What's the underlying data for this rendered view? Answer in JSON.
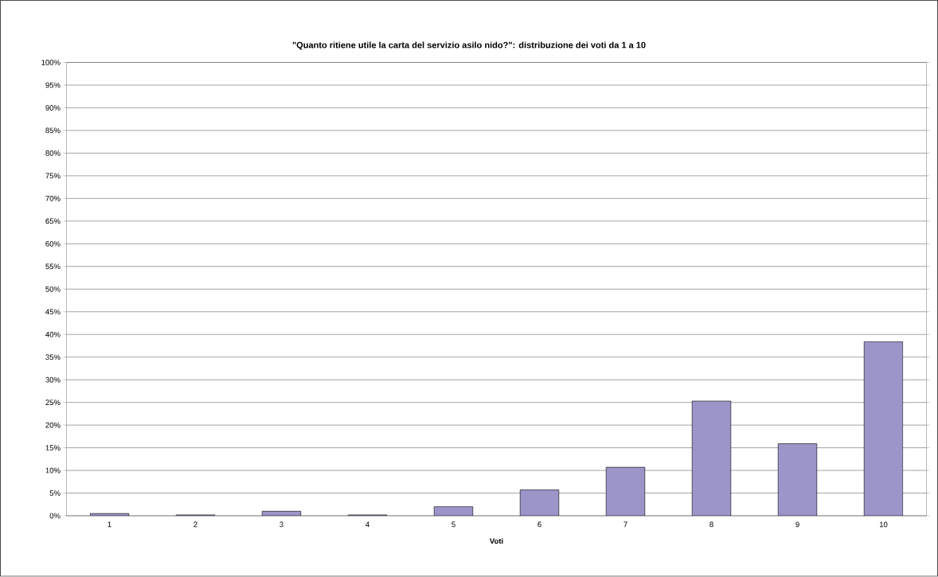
{
  "chart_data": {
    "type": "bar",
    "title": "\"Quanto ritiene utile la carta del servizio asilo nido?\": distribuzione dei voti da 1 a 10",
    "xlabel": "Voti",
    "categories": [
      "1",
      "2",
      "3",
      "4",
      "5",
      "6",
      "7",
      "8",
      "9",
      "10"
    ],
    "values": [
      0.5,
      0.2,
      1.0,
      0.2,
      2.0,
      5.7,
      10.7,
      25.3,
      15.9,
      38.4
    ],
    "color": "#9b95c9",
    "ylim": [
      0,
      100
    ],
    "yticks": [
      {
        "value": 0,
        "label": "0%"
      },
      {
        "value": 5,
        "label": "5%"
      },
      {
        "value": 10,
        "label": "10%"
      },
      {
        "value": 15,
        "label": "15%"
      },
      {
        "value": 20,
        "label": "20%"
      },
      {
        "value": 25,
        "label": "25%"
      },
      {
        "value": 30,
        "label": "30%"
      },
      {
        "value": 35,
        "label": "35%"
      },
      {
        "value": 40,
        "label": "40%"
      },
      {
        "value": 45,
        "label": "45%"
      },
      {
        "value": 50,
        "label": "50%"
      },
      {
        "value": 55,
        "label": "55%"
      },
      {
        "value": 60,
        "label": "60%"
      },
      {
        "value": 65,
        "label": "65%"
      },
      {
        "value": 70,
        "label": "70%"
      },
      {
        "value": 75,
        "label": "75%"
      },
      {
        "value": 80,
        "label": "80%"
      },
      {
        "value": 85,
        "label": "85%"
      },
      {
        "value": 90,
        "label": "90%"
      },
      {
        "value": 95,
        "label": "95%"
      },
      {
        "value": 100,
        "label": "100%"
      }
    ],
    "grid": "y"
  }
}
